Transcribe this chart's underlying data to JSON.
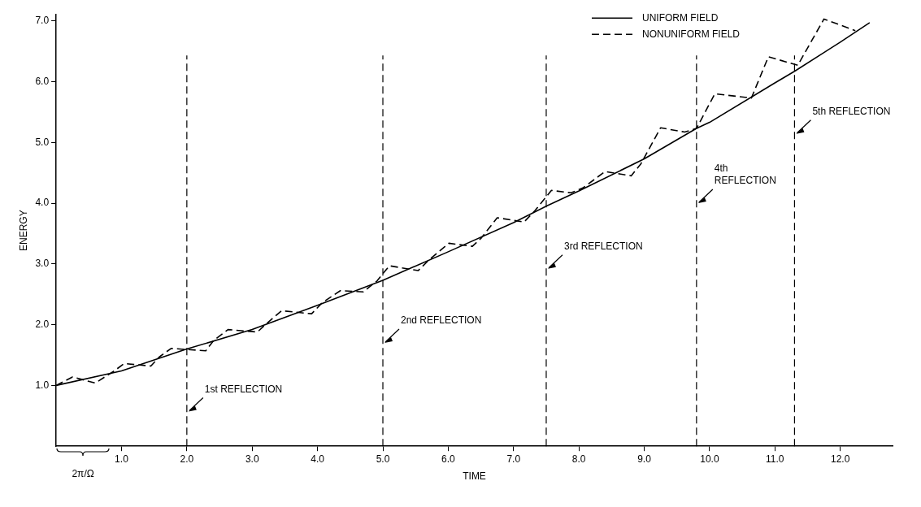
{
  "chart_data": {
    "type": "line",
    "xlabel": "TIME",
    "ylabel": "ENERGY",
    "xlim": [
      0,
      12.8
    ],
    "ylim": [
      0,
      7.1
    ],
    "xticks": [
      {
        "value": 1,
        "label": "1.0"
      },
      {
        "value": 2,
        "label": "2.0"
      },
      {
        "value": 3,
        "label": "3.0"
      },
      {
        "value": 4,
        "label": "4.0"
      },
      {
        "value": 5,
        "label": "5.0"
      },
      {
        "value": 6,
        "label": "6.0"
      },
      {
        "value": 7,
        "label": "7.0"
      },
      {
        "value": 8,
        "label": "8.0"
      },
      {
        "value": 9,
        "label": "9.0"
      },
      {
        "value": 10,
        "label": "10.0"
      },
      {
        "value": 11,
        "label": "11.0"
      },
      {
        "value": 12,
        "label": "12.0"
      }
    ],
    "yticks": [
      {
        "value": 1,
        "label": "1.0"
      },
      {
        "value": 2,
        "label": "2.0"
      },
      {
        "value": 3,
        "label": "3.0"
      },
      {
        "value": 4,
        "label": "4.0"
      },
      {
        "value": 5,
        "label": "5.0"
      },
      {
        "value": 6,
        "label": "6.0"
      },
      {
        "value": 7,
        "label": "7.0"
      }
    ],
    "grid": false,
    "legend": "top right",
    "marker": "none",
    "series": [
      {
        "name": "UNIFORM FIELD",
        "color": "#000000",
        "line_style": "solid",
        "x": [
          0,
          1,
          2,
          3,
          4,
          5,
          6,
          7,
          7.5,
          8,
          9,
          9.8,
          10,
          11,
          11.3,
          12,
          12.45
        ],
        "values": [
          1.0,
          1.24,
          1.6,
          1.92,
          2.32,
          2.73,
          3.2,
          3.68,
          3.95,
          4.2,
          4.73,
          5.23,
          5.33,
          5.98,
          6.17,
          6.65,
          6.97
        ]
      },
      {
        "name": "NONUNIFORM FIELD",
        "color": "#000000",
        "line_style": "dashed",
        "x": [
          0,
          0.25,
          0.6,
          0.89,
          1.04,
          1.45,
          1.58,
          1.76,
          2.29,
          2.41,
          2.63,
          3.08,
          3.2,
          3.45,
          3.91,
          4.07,
          4.35,
          4.7,
          4.91,
          5.1,
          5.54,
          5.7,
          6.01,
          6.37,
          6.5,
          6.75,
          7.16,
          7.33,
          7.58,
          7.88,
          8.06,
          8.4,
          8.8,
          8.95,
          9.25,
          9.62,
          9.8,
          10.08,
          10.64,
          10.9,
          11.25,
          11.35,
          11.75,
          12.23
        ],
        "values": [
          1.0,
          1.14,
          1.04,
          1.24,
          1.36,
          1.32,
          1.47,
          1.61,
          1.57,
          1.74,
          1.92,
          1.88,
          2.0,
          2.23,
          2.18,
          2.36,
          2.56,
          2.54,
          2.72,
          2.97,
          2.89,
          3.06,
          3.34,
          3.29,
          3.42,
          3.76,
          3.69,
          3.88,
          4.21,
          4.17,
          4.25,
          4.52,
          4.45,
          4.65,
          5.24,
          5.17,
          5.23,
          5.8,
          5.73,
          6.41,
          6.3,
          6.27,
          7.03,
          6.84
        ]
      }
    ],
    "ref_lines": [
      {
        "axis": "x",
        "value": 2.0,
        "label": "1st REFLECTION",
        "line_style": "dashed"
      },
      {
        "axis": "x",
        "value": 5.0,
        "label": "2nd REFLECTION",
        "line_style": "dashed"
      },
      {
        "axis": "x",
        "value": 7.5,
        "label": "3rd REFLECTION",
        "line_style": "dashed"
      },
      {
        "axis": "x",
        "value": 9.8,
        "label": "4th REFLECTION",
        "line_style": "dashed"
      },
      {
        "axis": "x",
        "value": 11.3,
        "label": "5th REFLECTION",
        "line_style": "dashed"
      }
    ],
    "annotations": [
      "2π/Ω"
    ]
  }
}
